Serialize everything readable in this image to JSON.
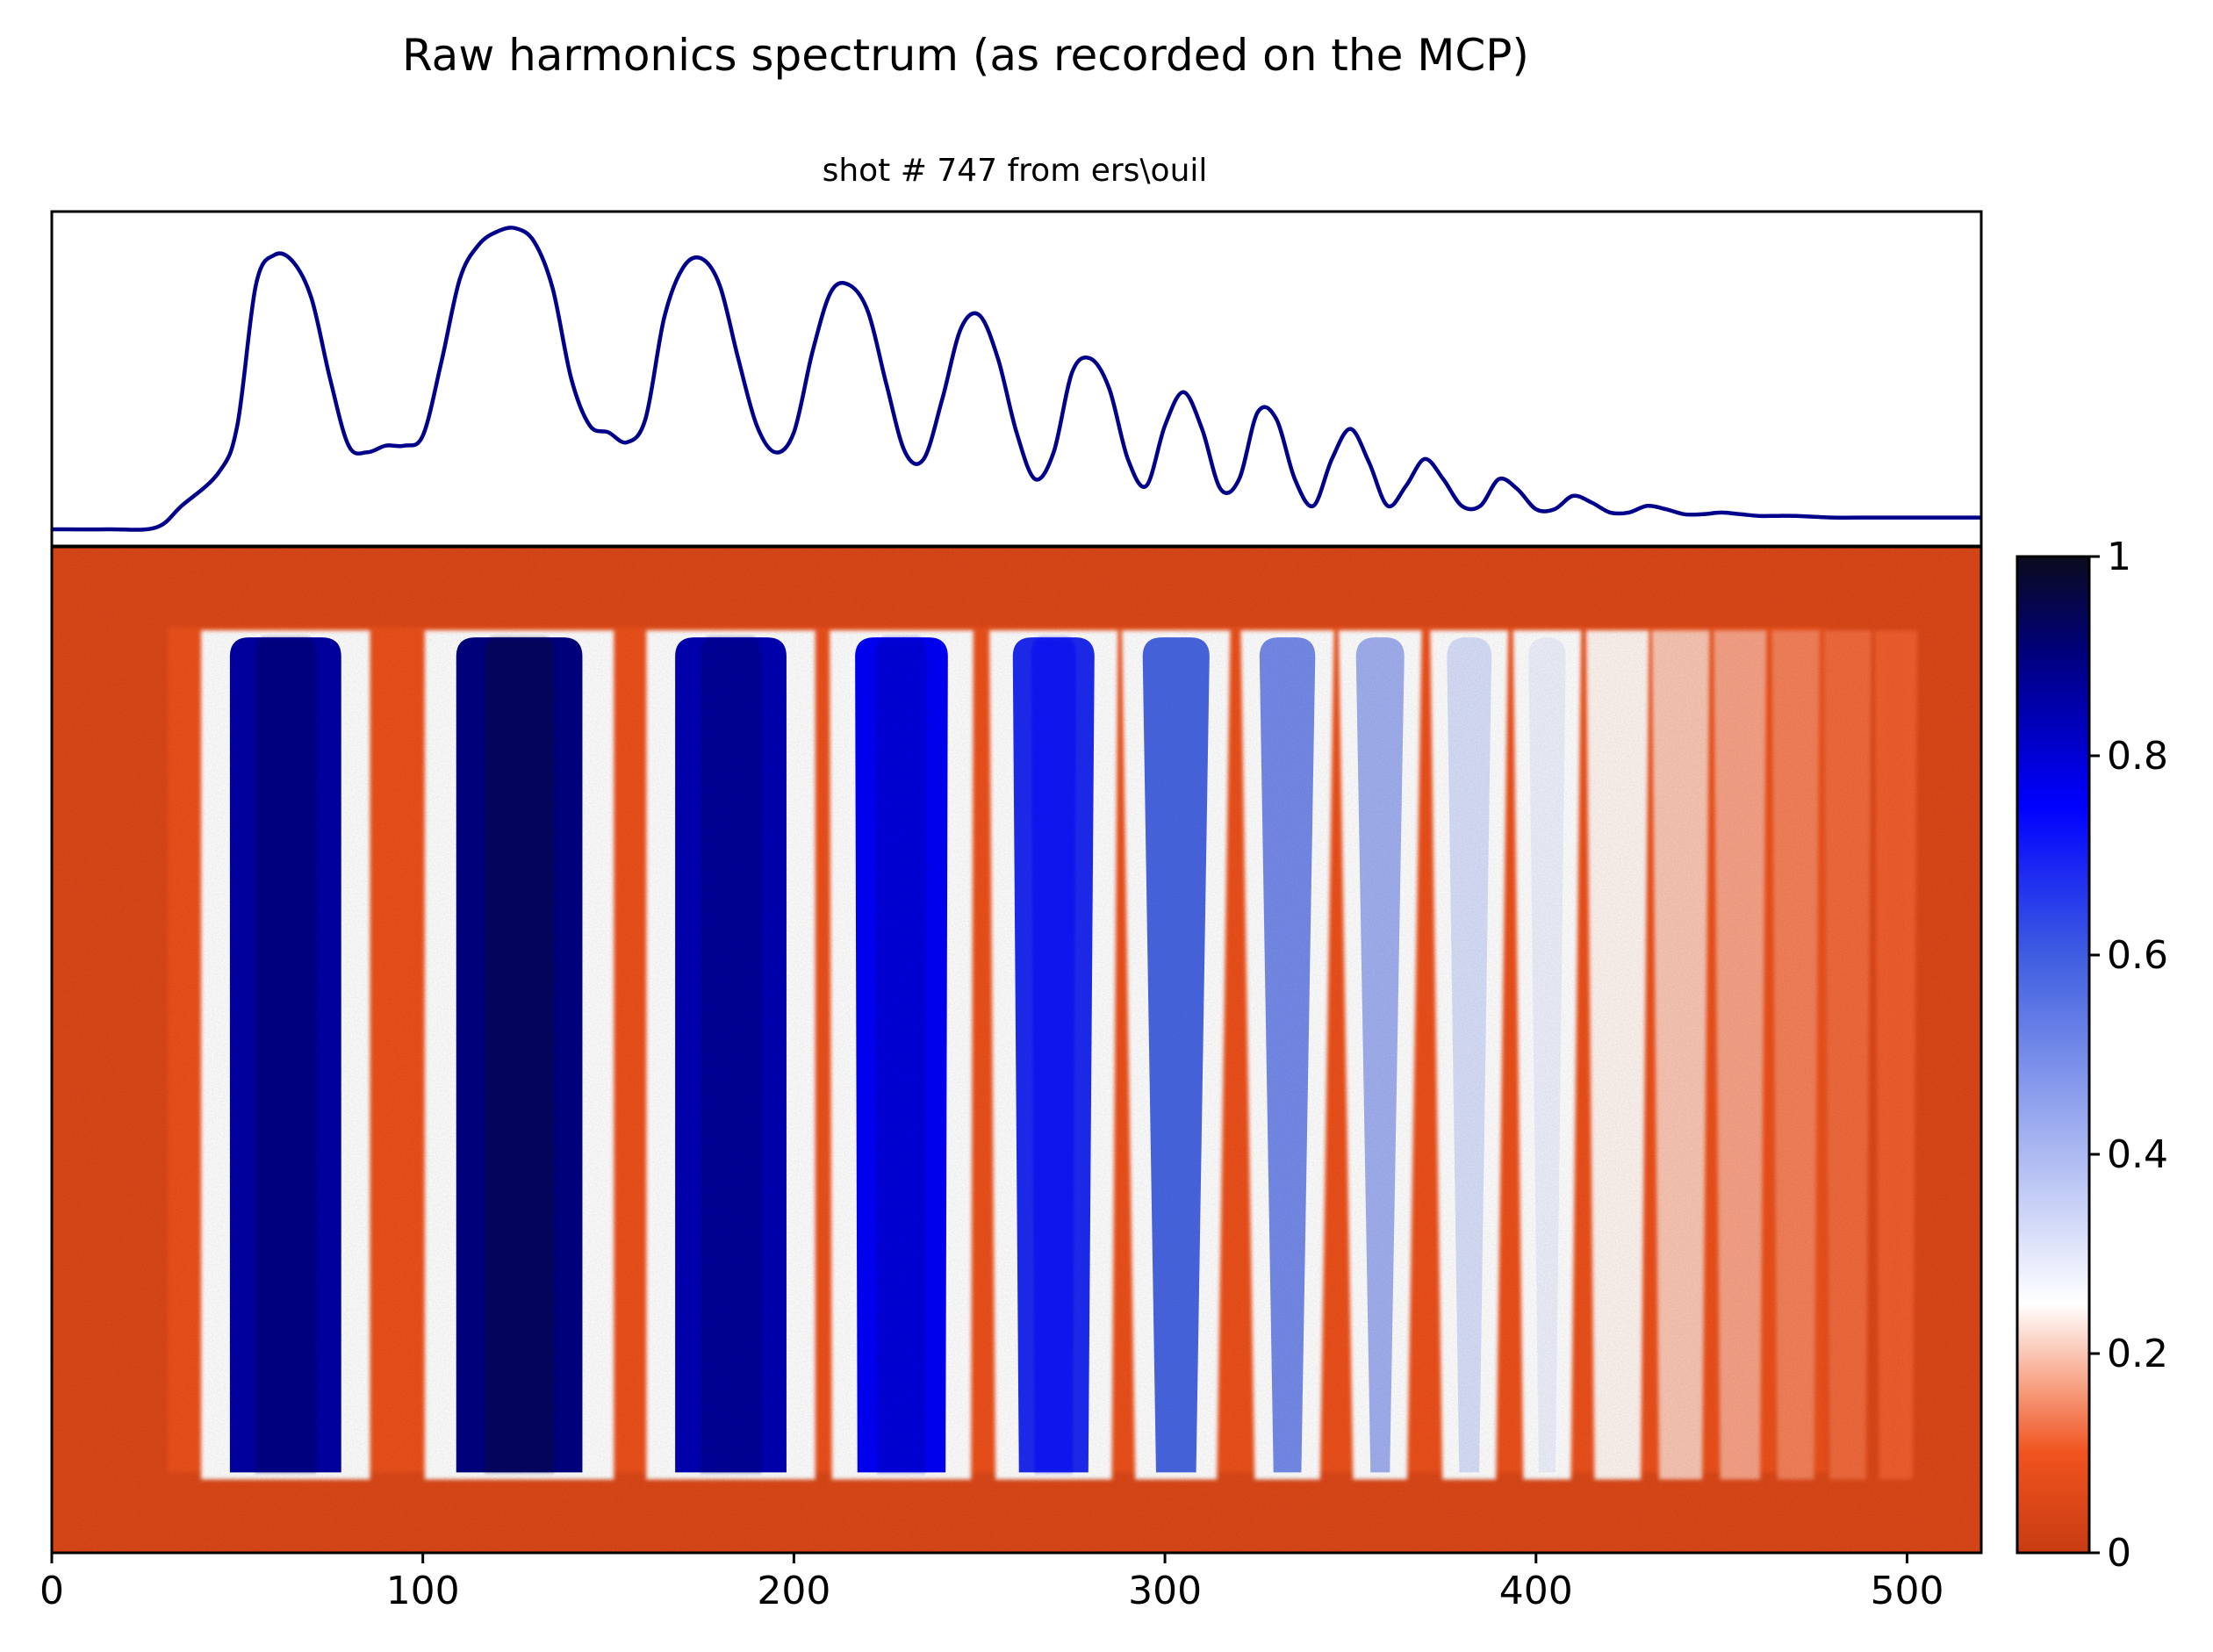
{
  "chart_data": [
    {
      "type": "line",
      "title": "Raw harmonics spectrum (as recorded on the MCP)",
      "subtitle": "shot # 747 from ers\\ouil",
      "xlim": [
        0,
        520
      ],
      "ylim": [
        0,
        1.0
      ],
      "line_color": "#00008b",
      "show_ticks": false,
      "series": [
        {
          "x": [
            0,
            15,
            28,
            35,
            45,
            50,
            55,
            60,
            65,
            70,
            75,
            80,
            85,
            90,
            95,
            100,
            105,
            110,
            115,
            120,
            125,
            130,
            135,
            140,
            145,
            150,
            155,
            160,
            165,
            170,
            175,
            180,
            185,
            190,
            195,
            200,
            205,
            210,
            215,
            220,
            225,
            230,
            235,
            240,
            245,
            250,
            255,
            260,
            265,
            270,
            275,
            280,
            285,
            290,
            295,
            300,
            305,
            310,
            315,
            320,
            325,
            330,
            335,
            340,
            345,
            350,
            355,
            360,
            365,
            370,
            375,
            380,
            385,
            390,
            395,
            400,
            405,
            410,
            415,
            420,
            425,
            430,
            435,
            440,
            445,
            450,
            455,
            460,
            465,
            470,
            480,
            490,
            500,
            510,
            520
          ],
          "y": [
            0.05,
            0.05,
            0.055,
            0.12,
            0.22,
            0.36,
            0.78,
            0.87,
            0.85,
            0.74,
            0.5,
            0.3,
            0.28,
            0.3,
            0.3,
            0.33,
            0.55,
            0.8,
            0.9,
            0.94,
            0.95,
            0.91,
            0.77,
            0.5,
            0.36,
            0.34,
            0.31,
            0.38,
            0.68,
            0.83,
            0.86,
            0.78,
            0.56,
            0.36,
            0.28,
            0.34,
            0.58,
            0.76,
            0.78,
            0.7,
            0.48,
            0.28,
            0.26,
            0.44,
            0.65,
            0.69,
            0.56,
            0.34,
            0.2,
            0.28,
            0.52,
            0.56,
            0.47,
            0.26,
            0.18,
            0.36,
            0.46,
            0.35,
            0.17,
            0.2,
            0.4,
            0.38,
            0.2,
            0.12,
            0.26,
            0.35,
            0.25,
            0.12,
            0.18,
            0.26,
            0.2,
            0.12,
            0.12,
            0.2,
            0.17,
            0.11,
            0.11,
            0.15,
            0.13,
            0.1,
            0.1,
            0.12,
            0.11,
            0.095,
            0.095,
            0.1,
            0.095,
            0.09,
            0.09,
            0.09,
            0.085,
            0.085,
            0.085,
            0.085,
            0.085
          ]
        }
      ]
    },
    {
      "type": "heatmap",
      "xlim": [
        0,
        520
      ],
      "x_ticks": [
        "0",
        "100",
        "200",
        "300",
        "400",
        "500"
      ],
      "x_tick_values": [
        0,
        100,
        200,
        300,
        400,
        500
      ],
      "colorbar": {
        "range": [
          0,
          1
        ],
        "ticks": [
          "0",
          "0.2",
          "0.4",
          "0.6",
          "0.8",
          "1"
        ],
        "tick_values": [
          0,
          0.2,
          0.4,
          0.6,
          0.8,
          1
        ],
        "colors": [
          "#c83c12",
          "#f0531e",
          "#ffffff",
          "#3e5de0",
          "#0000ff",
          "#000080",
          "#0b0b1e"
        ],
        "color_stops": [
          0,
          0.1,
          0.25,
          0.6,
          0.75,
          0.9,
          1
        ]
      },
      "background_value": 0.05,
      "harmonics": [
        {
          "center": 63,
          "width": 30,
          "peak": 0.86,
          "taper": 0.0
        },
        {
          "center": 126,
          "width": 34,
          "peak": 0.9,
          "taper": 0.0
        },
        {
          "center": 183,
          "width": 30,
          "peak": 0.84,
          "taper": 0.0
        },
        {
          "center": 229,
          "width": 25,
          "peak": 0.76,
          "taper": 0.05
        },
        {
          "center": 270,
          "width": 22,
          "peak": 0.68,
          "taper": 0.15
        },
        {
          "center": 303,
          "width": 18,
          "peak": 0.58,
          "taper": 0.4
        },
        {
          "center": 333,
          "width": 15,
          "peak": 0.5,
          "taper": 0.5
        },
        {
          "center": 358,
          "width": 13,
          "peak": 0.42,
          "taper": 0.6
        },
        {
          "center": 382,
          "width": 12,
          "peak": 0.32,
          "taper": 0.55
        },
        {
          "center": 403,
          "width": 10,
          "peak": 0.28,
          "taper": 0.55
        },
        {
          "center": 422,
          "width": 9,
          "peak": 0.24,
          "taper": 0.5
        },
        {
          "center": 439,
          "width": 8,
          "peak": 0.2,
          "taper": 0.5
        },
        {
          "center": 455,
          "width": 7,
          "peak": 0.17,
          "taper": 0.5
        },
        {
          "center": 470,
          "width": 6,
          "peak": 0.14,
          "taper": 0.5
        },
        {
          "center": 484,
          "width": 6,
          "peak": 0.12,
          "taper": 0.5
        },
        {
          "center": 497,
          "width": 5,
          "peak": 0.11,
          "taper": 0.5
        }
      ],
      "halo_value": 0.22
    }
  ]
}
